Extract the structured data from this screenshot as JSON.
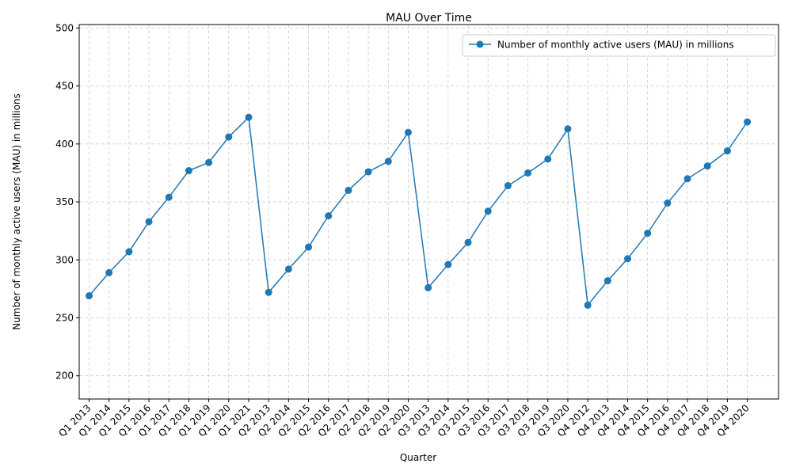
{
  "chart_data": {
    "type": "line",
    "title": "MAU Over Time",
    "xlabel": "Quarter",
    "ylabel": "Number of monthly active users (MAU) in millions",
    "ylim": [
      180,
      503
    ],
    "yticks": [
      200,
      250,
      300,
      350,
      400,
      450,
      500
    ],
    "grid": true,
    "legend_position": "top-right",
    "color": "#1f77b4",
    "categories": [
      "Q1 2013",
      "Q1 2014",
      "Q1 2015",
      "Q1 2016",
      "Q1 2017",
      "Q1 2018",
      "Q1 2019",
      "Q1 2020",
      "Q1 2021",
      "Q2 2013",
      "Q2 2014",
      "Q2 2015",
      "Q2 2016",
      "Q2 2017",
      "Q2 2018",
      "Q2 2019",
      "Q2 2020",
      "Q3 2013",
      "Q3 2014",
      "Q3 2015",
      "Q3 2016",
      "Q3 2017",
      "Q3 2018",
      "Q3 2019",
      "Q3 2020",
      "Q4 2012",
      "Q4 2013",
      "Q4 2014",
      "Q4 2015",
      "Q4 2016",
      "Q4 2017",
      "Q4 2018",
      "Q4 2019",
      "Q4 2020"
    ],
    "series": [
      {
        "name": "Number of monthly active users (MAU) in millions",
        "values": [
          269,
          289,
          307,
          333,
          354,
          377,
          384,
          406,
          423,
          272,
          292,
          311,
          338,
          360,
          376,
          385,
          410,
          276,
          296,
          315,
          342,
          364,
          375,
          387,
          413,
          261,
          282,
          301,
          323,
          349,
          370,
          381,
          394,
          419
        ]
      }
    ]
  }
}
